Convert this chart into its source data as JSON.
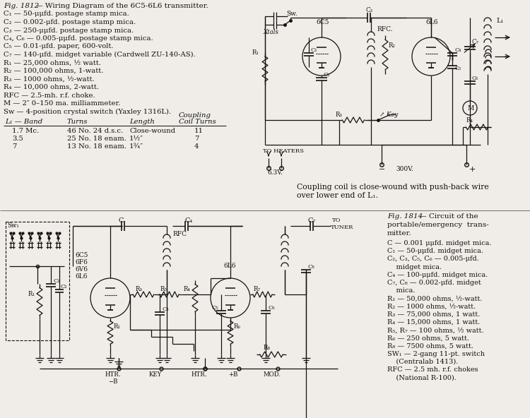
{
  "bg_color": "#f0ede8",
  "text_color": "#111111",
  "line_color": "#111111",
  "title1_italic": "Fig. 1812",
  "title1_rest": " — Wiring Diagram of the 6C5-6L6 transmitter.",
  "components1": [
    "C₁ — 50-μμfd. postage stamp mica.",
    "C₂ — 0.002-μfd. postage stamp mica.",
    "C₃ — 250-μμfd. postage stamp mica.",
    "C₄, C₆ — 0.005-μμfd. postage stamp mica.",
    "C₅ — 0.01-μfd. paper, 600-volt.",
    "C₇ — 140-μfd. midget variable (Cardwell ZU-140-AS).",
    "R₁ — 25,000 ohms, ½ watt.",
    "R₂ — 100,000 ohms, 1-watt.",
    "R₃ — 1000 ohms, ½-watt.",
    "R₄ — 10,000 ohms, 2-watt.",
    "RFC — 2.5-mh. r.f. choke.",
    "M — 2″ 0–150 ma. milliammeter.",
    "Sw — 4-position crystal switch (Yaxley 1316L)."
  ],
  "col_headers": [
    "L₁ — Band",
    "Turns",
    "Length",
    "Coupling",
    "Coil Turns"
  ],
  "table_rows": [
    [
      "1.7 Mc.",
      "46 No. 24 d.s.c.",
      "Close-wound",
      "11"
    ],
    [
      "3.5",
      "25 No. 18 enam.",
      "1½″",
      "7"
    ],
    [
      "7",
      "13 No. 18 enam.",
      "1¾″",
      "4"
    ]
  ],
  "coupling_note_line1": "Coupling coil is close-wound with push-back wire",
  "coupling_note_line2": "over lower end of L₁.",
  "title2_italic": "Fig. 1814",
  "title2_rest": " — Circuit of the",
  "title2_line2": "portable/emergency  trans-",
  "title2_line3": "mitter.",
  "components2": [
    "C — 0.001 μμfd. midget mica.",
    "C₁ — 50-μμfd. midget mica.",
    "C₂, C₃, C₅, C₆ — 0.005-μfd.",
    "    midget mica.",
    "C₄ — 100-μμfd. midget mica.",
    "C₇, C₈ — 0.002-μfd. midget",
    "    mica.",
    "R₁ — 50,000 ohms, ½-watt.",
    "R₂ — 1000 ohms, ½-watt.",
    "R₃ — 75,000 ohms, 1 watt.",
    "R₄ — 15,000 ohms, 1 watt.",
    "R₅, R₇ — 100 ohms, ½ watt.",
    "R₆ — 250 ohms, 5 watt.",
    "R₈ — 7500 ohms, 5 watt.",
    "SW₁ — 2-gang 11-pt. switch",
    "    (Centralab 1413).",
    "RFC — 2.5 mh. r.f. chokes",
    "    (National R-100)."
  ]
}
